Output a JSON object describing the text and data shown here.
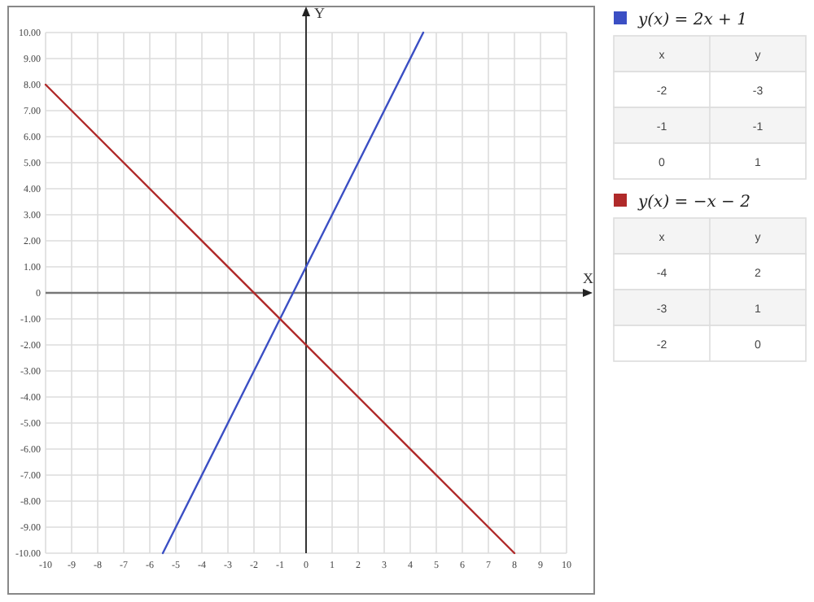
{
  "chart_data": [
    {
      "type": "line",
      "xlabel": "X",
      "ylabel": "Y",
      "xlim": [
        -10,
        10
      ],
      "ylim": [
        -10,
        10
      ],
      "xticks": [
        -10,
        -9,
        -8,
        -7,
        -6,
        -5,
        -4,
        -3,
        -2,
        -1,
        0,
        1,
        2,
        3,
        4,
        5,
        6,
        7,
        8,
        9,
        10
      ],
      "yticks": [
        {
          "value": 10,
          "label": "10.00"
        },
        {
          "value": 9,
          "label": "9.00"
        },
        {
          "value": 8,
          "label": "8.00"
        },
        {
          "value": 7,
          "label": "7.00"
        },
        {
          "value": 6,
          "label": "6.00"
        },
        {
          "value": 5,
          "label": "5.00"
        },
        {
          "value": 4,
          "label": "4.00"
        },
        {
          "value": 3,
          "label": "3.00"
        },
        {
          "value": 2,
          "label": "2.00"
        },
        {
          "value": 1,
          "label": "1.00"
        },
        0,
        {
          "value": -1,
          "label": "-1.00"
        },
        {
          "value": -2,
          "label": "-2.00"
        },
        {
          "value": -3,
          "label": "-3.00"
        },
        {
          "value": -4,
          "label": "-4.00"
        },
        {
          "value": -5,
          "label": "-5.00"
        },
        {
          "value": -6,
          "label": "-6.00"
        },
        {
          "value": -7,
          "label": "-7.00"
        },
        {
          "value": -8,
          "label": "-8.00"
        },
        {
          "value": -9,
          "label": "-9.00"
        },
        {
          "value": -10,
          "label": "-10.00"
        }
      ],
      "grid": true,
      "legend": "right",
      "series": [
        {
          "name": "y(x) = 2x + 1",
          "color": "#3b4fc4",
          "x": [
            -5.5,
            4.5
          ],
          "values": [
            -10,
            10
          ]
        },
        {
          "name": "y(x) = −x − 2",
          "color": "#b02a2a",
          "x": [
            -10,
            8
          ],
          "values": [
            8,
            -10
          ]
        }
      ]
    },
    {
      "type": "other",
      "annotations": [
        "x",
        "y",
        "-2",
        "-3",
        "-1",
        "-1",
        "0",
        "1",
        "x",
        "y",
        "-4",
        "2",
        "-3",
        "1",
        "-2",
        "0"
      ]
    }
  ]
}
